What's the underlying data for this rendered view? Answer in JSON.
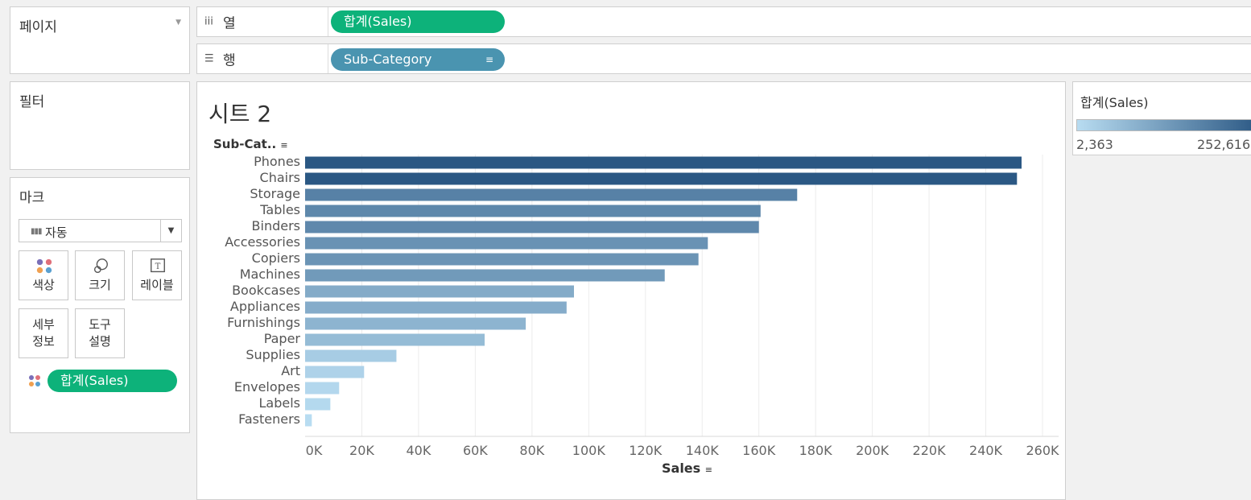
{
  "panels": {
    "pages_label": "페이지",
    "filters_label": "필터",
    "marks_label": "마크"
  },
  "shelves": {
    "columns_label": "열",
    "rows_label": "행",
    "columns_pill": "합계(Sales)",
    "rows_pill": "Sub-Category"
  },
  "marks": {
    "mark_type": "자동",
    "buttons": {
      "color": "색상",
      "size": "크기",
      "label": "레이블",
      "detail_line1": "세부",
      "detail_line2": "정보",
      "tooltip_line1": "도구",
      "tooltip_line2": "설명"
    },
    "color_pill": "합계(Sales)"
  },
  "colors": {
    "green_pill": "#0db27a",
    "blue_pill": "#4a94b0",
    "ramp_low": "#b8dcf1",
    "ramp_high": "#2a5783"
  },
  "chart_data": {
    "type": "bar",
    "title": "시트 2",
    "category_header": "Sub-Cat..",
    "xlabel": "Sales",
    "xlim": [
      0,
      260000
    ],
    "categories": [
      "Phones",
      "Chairs",
      "Storage",
      "Tables",
      "Binders",
      "Accessories",
      "Copiers",
      "Machines",
      "Bookcases",
      "Appliances",
      "Furnishings",
      "Paper",
      "Supplies",
      "Art",
      "Envelopes",
      "Labels",
      "Fasteners"
    ],
    "values": [
      252616,
      251000,
      173500,
      160600,
      160000,
      142000,
      138700,
      126800,
      94800,
      92200,
      77800,
      63300,
      32200,
      20800,
      12000,
      8900,
      2363
    ],
    "ticks": [
      0,
      20000,
      40000,
      60000,
      80000,
      100000,
      120000,
      140000,
      160000,
      180000,
      200000,
      220000,
      240000,
      260000
    ],
    "tick_labels": [
      "0K",
      "20K",
      "40K",
      "60K",
      "80K",
      "100K",
      "120K",
      "140K",
      "160K",
      "180K",
      "200K",
      "220K",
      "240K",
      "260K"
    ],
    "grid": true
  },
  "legend": {
    "title": "합계(Sales)",
    "min_label": "2,363",
    "max_label": "252,616",
    "min": 2363,
    "max": 252616
  }
}
